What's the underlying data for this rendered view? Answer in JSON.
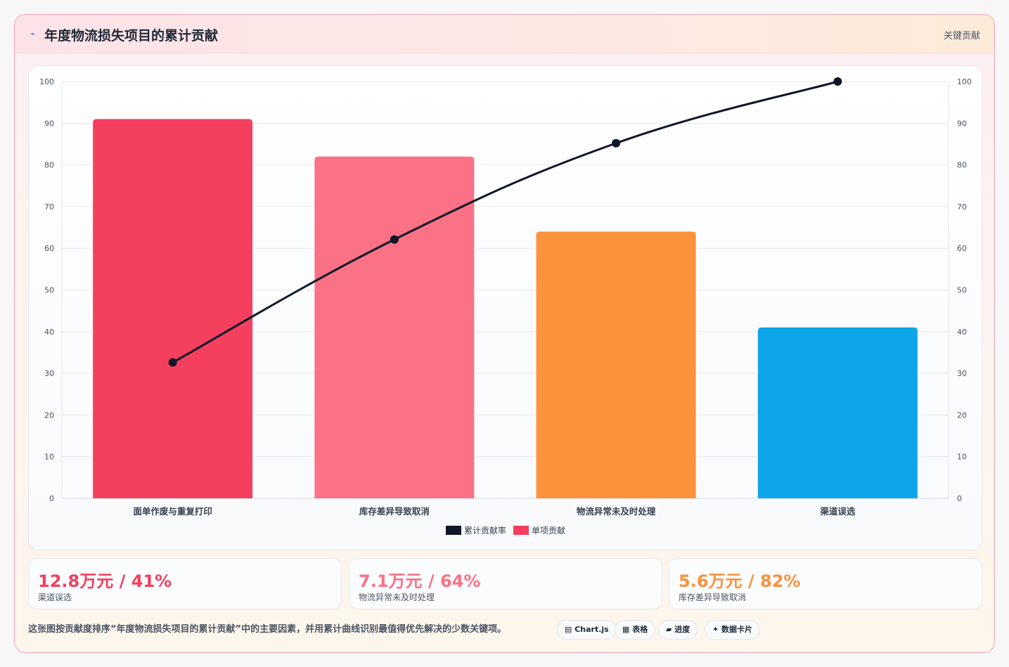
{
  "header": {
    "title": "年度物流损失项目的累计贡献",
    "badge": "关键贡献",
    "icon": "sparkline-icon"
  },
  "chart_data": {
    "type": "bar",
    "categories": [
      "面单作废与重复打印",
      "库存差异导致取消",
      "物流异常未及时处理",
      "渠道误选"
    ],
    "series": [
      {
        "name": "单项贡献",
        "type": "bar",
        "values": [
          91,
          82,
          64,
          41
        ],
        "colors": [
          "#f43f5e",
          "#fb7185",
          "#fb923c",
          "#0ea5e9"
        ]
      },
      {
        "name": "累计贡献率",
        "type": "line",
        "values": [
          32.6,
          62.1,
          85.2,
          100
        ],
        "color": "#0f172a"
      }
    ],
    "ylim": [
      0,
      100
    ],
    "y_ticks": [
      0,
      10,
      20,
      30,
      40,
      50,
      60,
      70,
      80,
      90,
      100
    ],
    "y2lim": [
      0,
      100
    ],
    "y2_ticks": [
      0,
      10,
      20,
      30,
      40,
      50,
      60,
      70,
      80,
      90,
      100
    ],
    "legend": [
      "累计贡献率",
      "单项贡献"
    ],
    "legend_position": "bottom",
    "grid": true
  },
  "stats": [
    {
      "value": "12.8万元 / 41%",
      "label": "渠道误选",
      "color": "#f43f5e"
    },
    {
      "value": "7.1万元 / 64%",
      "label": "物流异常未及时处理",
      "color": "#fb7185"
    },
    {
      "value": "5.6万元 / 82%",
      "label": "库存差异导致取消",
      "color": "#fb923c"
    }
  ],
  "footer": {
    "text": "这张图按贡献度排序“年度物流损失项目的累计贡献”中的主要因素，并用累计曲线识别最值得优先解决的少数关键项。",
    "chips": [
      {
        "label": "▤ Chart.js"
      },
      {
        "label": "▦ 表格"
      },
      {
        "label": "▰ 进度"
      },
      {
        "label": "✦ 数据卡片"
      }
    ]
  }
}
